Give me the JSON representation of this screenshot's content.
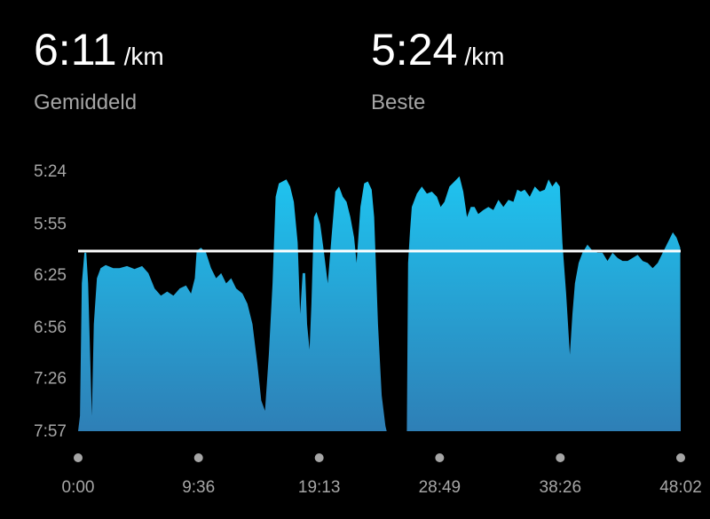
{
  "stats": {
    "average": {
      "value": "6:11",
      "unit": "/km",
      "label": "Gemiddeld"
    },
    "best": {
      "value": "5:24",
      "unit": "/km",
      "label": "Beste"
    }
  },
  "colors": {
    "background": "#000000",
    "area_top": "#1fc3ef",
    "area_bottom": "#2e7fb6",
    "average_line": "#ffffff",
    "text_primary": "#ffffff",
    "text_secondary": "#a6a6a6",
    "axis_dot": "#a6a6a6"
  },
  "chart_data": {
    "type": "area",
    "xlabel": "",
    "ylabel": "",
    "ylim_minutes": [
      5.4,
      7.95
    ],
    "y_inverted": true,
    "y_ticks": [
      "5:24",
      "5:55",
      "6:25",
      "6:56",
      "7:26",
      "7:57"
    ],
    "y_tick_values": [
      5.4,
      5.917,
      6.417,
      6.933,
      7.433,
      7.95
    ],
    "x_ticks": [
      "0:00",
      "9:36",
      "19:13",
      "28:49",
      "38:26",
      "48:02"
    ],
    "x_tick_values": [
      0,
      9.6,
      19.217,
      28.817,
      38.433,
      48.033
    ],
    "xlim_minutes": [
      0,
      48.033
    ],
    "average_line_minutes": 6.183,
    "grid": false,
    "series": [
      {
        "segments": [
          [
            [
              0,
              7.95
            ],
            [
              0.15,
              7.8
            ],
            [
              0.3,
              6.5
            ],
            [
              0.5,
              6.2
            ],
            [
              0.65,
              6.2
            ],
            [
              0.8,
              6.5
            ],
            [
              1.1,
              7.8
            ],
            [
              1.25,
              6.9
            ],
            [
              1.5,
              6.45
            ],
            [
              1.8,
              6.35
            ],
            [
              2.2,
              6.32
            ],
            [
              2.8,
              6.35
            ],
            [
              3.3,
              6.35
            ],
            [
              3.9,
              6.33
            ],
            [
              4.5,
              6.36
            ],
            [
              5.1,
              6.33
            ],
            [
              5.6,
              6.4
            ],
            [
              6.1,
              6.55
            ],
            [
              6.6,
              6.62
            ],
            [
              7.1,
              6.58
            ],
            [
              7.6,
              6.62
            ],
            [
              8.1,
              6.55
            ],
            [
              8.6,
              6.52
            ],
            [
              9.0,
              6.6
            ],
            [
              9.3,
              6.45
            ],
            [
              9.45,
              6.18
            ],
            [
              9.8,
              6.15
            ],
            [
              10.2,
              6.2
            ],
            [
              10.6,
              6.35
            ],
            [
              11.0,
              6.45
            ],
            [
              11.4,
              6.4
            ],
            [
              11.8,
              6.5
            ],
            [
              12.2,
              6.45
            ],
            [
              12.6,
              6.55
            ],
            [
              13.1,
              6.6
            ],
            [
              13.5,
              6.7
            ],
            [
              13.9,
              6.9
            ],
            [
              14.3,
              7.3
            ],
            [
              14.6,
              7.65
            ],
            [
              14.9,
              7.75
            ],
            [
              15.2,
              7.2
            ],
            [
              15.5,
              6.5
            ],
            [
              15.75,
              5.65
            ],
            [
              16.0,
              5.52
            ],
            [
              16.3,
              5.5
            ],
            [
              16.6,
              5.48
            ],
            [
              16.9,
              5.55
            ],
            [
              17.2,
              5.7
            ],
            [
              17.5,
              6.1
            ],
            [
              17.7,
              6.8
            ],
            [
              17.9,
              6.4
            ],
            [
              18.1,
              6.4
            ],
            [
              18.25,
              6.9
            ],
            [
              18.45,
              7.15
            ],
            [
              18.6,
              6.7
            ],
            [
              18.8,
              5.85
            ],
            [
              19.0,
              5.8
            ],
            [
              19.3,
              5.92
            ],
            [
              19.6,
              6.2
            ],
            [
              19.9,
              6.5
            ],
            [
              20.2,
              6.05
            ],
            [
              20.5,
              5.6
            ],
            [
              20.8,
              5.55
            ],
            [
              21.1,
              5.65
            ],
            [
              21.4,
              5.7
            ],
            [
              21.7,
              5.85
            ],
            [
              22.0,
              6.05
            ],
            [
              22.2,
              6.3
            ],
            [
              22.5,
              5.75
            ],
            [
              22.8,
              5.52
            ],
            [
              23.1,
              5.5
            ],
            [
              23.4,
              5.58
            ],
            [
              23.6,
              5.85
            ],
            [
              23.9,
              6.9
            ],
            [
              24.2,
              7.6
            ],
            [
              24.5,
              7.9
            ],
            [
              24.6,
              7.95
            ]
          ],
          [
            [
              26.2,
              7.95
            ],
            [
              26.3,
              6.3
            ],
            [
              26.45,
              6.0
            ],
            [
              26.6,
              5.75
            ],
            [
              27.0,
              5.62
            ],
            [
              27.4,
              5.55
            ],
            [
              27.8,
              5.62
            ],
            [
              28.2,
              5.6
            ],
            [
              28.6,
              5.65
            ],
            [
              28.9,
              5.75
            ],
            [
              29.2,
              5.7
            ],
            [
              29.6,
              5.55
            ],
            [
              30.0,
              5.5
            ],
            [
              30.4,
              5.45
            ],
            [
              30.7,
              5.6
            ],
            [
              31.0,
              5.85
            ],
            [
              31.3,
              5.75
            ],
            [
              31.6,
              5.75
            ],
            [
              31.9,
              5.82
            ],
            [
              32.3,
              5.78
            ],
            [
              32.7,
              5.75
            ],
            [
              33.1,
              5.78
            ],
            [
              33.5,
              5.68
            ],
            [
              33.9,
              5.75
            ],
            [
              34.3,
              5.68
            ],
            [
              34.7,
              5.7
            ],
            [
              35.0,
              5.58
            ],
            [
              35.3,
              5.6
            ],
            [
              35.6,
              5.58
            ],
            [
              36.0,
              5.65
            ],
            [
              36.4,
              5.55
            ],
            [
              36.8,
              5.6
            ],
            [
              37.2,
              5.58
            ],
            [
              37.5,
              5.48
            ],
            [
              37.8,
              5.55
            ],
            [
              38.1,
              5.5
            ],
            [
              38.4,
              5.55
            ],
            [
              38.6,
              6.1
            ],
            [
              38.9,
              6.6
            ],
            [
              39.05,
              6.9
            ],
            [
              39.2,
              7.2
            ],
            [
              39.4,
              6.8
            ],
            [
              39.6,
              6.5
            ],
            [
              39.9,
              6.3
            ],
            [
              40.2,
              6.2
            ],
            [
              40.6,
              6.12
            ],
            [
              41.0,
              6.18
            ],
            [
              41.4,
              6.2
            ],
            [
              41.8,
              6.2
            ],
            [
              42.2,
              6.28
            ],
            [
              42.6,
              6.2
            ],
            [
              43.0,
              6.25
            ],
            [
              43.4,
              6.28
            ],
            [
              43.8,
              6.28
            ],
            [
              44.2,
              6.25
            ],
            [
              44.6,
              6.22
            ],
            [
              45.0,
              6.28
            ],
            [
              45.4,
              6.3
            ],
            [
              45.8,
              6.35
            ],
            [
              46.2,
              6.3
            ],
            [
              46.6,
              6.2
            ],
            [
              47.0,
              6.1
            ],
            [
              47.4,
              6.0
            ],
            [
              47.7,
              6.05
            ],
            [
              48.0,
              6.15
            ],
            [
              48.033,
              7.95
            ]
          ]
        ]
      }
    ]
  }
}
